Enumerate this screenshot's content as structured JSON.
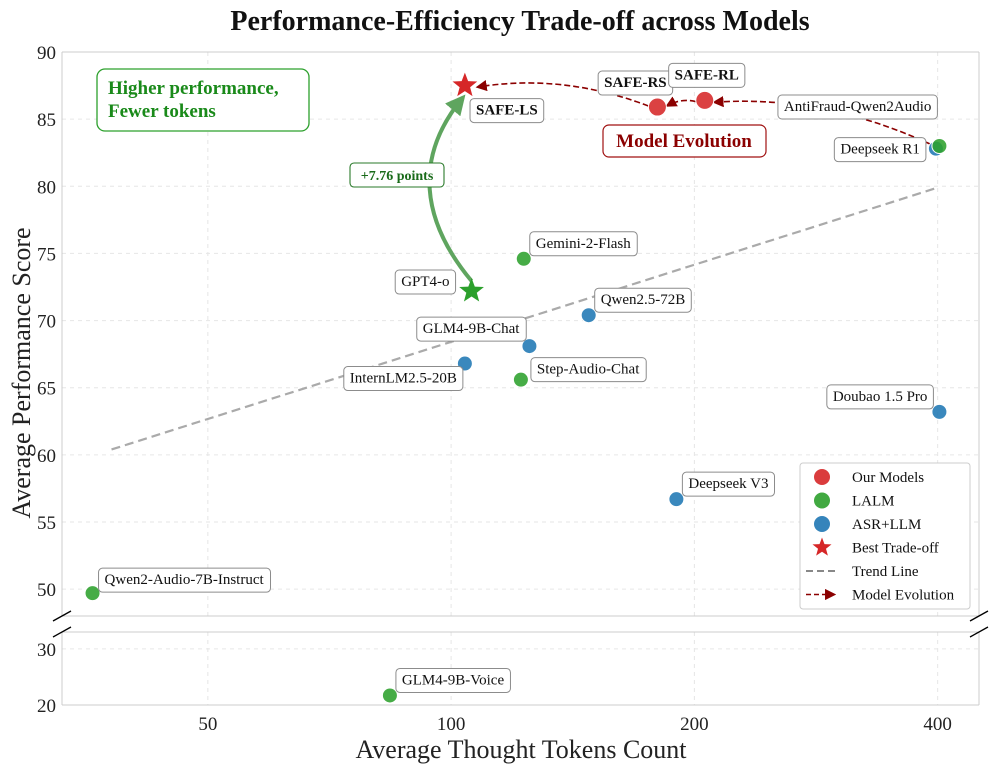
{
  "chart_data": {
    "type": "scatter",
    "title": "Performance-Efficiency Trade-off across Models",
    "xlabel": "Average Thought Tokens Count",
    "ylabel": "Average Performance Score",
    "x_scale": "log",
    "x_ticks": [
      50,
      100,
      200,
      400
    ],
    "x_tick_labels": [
      "50",
      "100",
      "200",
      "400"
    ],
    "y_upper_ticks": [
      50,
      55,
      60,
      65,
      70,
      75,
      80,
      85,
      90
    ],
    "y_upper_tick_labels": [
      "50",
      "55",
      "60",
      "65",
      "70",
      "75",
      "80",
      "85",
      "90"
    ],
    "y_lower_ticks": [
      20,
      30
    ],
    "y_lower_tick_labels": [
      "20",
      "30"
    ],
    "xlim": [
      33,
      450
    ],
    "ylim_upper": [
      48,
      90
    ],
    "ylim_lower": [
      20,
      33
    ],
    "grid": true,
    "colors": {
      "our_models": "#d62728",
      "lalm": "#2ca02c",
      "asr_llm": "#1f77b4",
      "best_tradeoff": "#d62728",
      "trend": "#aaaaaa",
      "evolution": "#8b0000",
      "annotation_green": "#1a7f1a"
    },
    "points": [
      {
        "name": "Qwen2-Audio-7B-Instruct",
        "x": 36,
        "y": 49.7,
        "group": "LALM"
      },
      {
        "name": "GLM4-9B-Voice",
        "x": 84,
        "y": 21.7,
        "group": "LALM"
      },
      {
        "name": "InternLM2.5-20B",
        "x": 104,
        "y": 66.8,
        "group": "ASR+LLM"
      },
      {
        "name": "GLM4-9B-Chat",
        "x": 125,
        "y": 68.1,
        "group": "ASR+LLM"
      },
      {
        "name": "Step-Audio-Chat",
        "x": 122,
        "y": 65.6,
        "group": "LALM"
      },
      {
        "name": "Gemini-2-Flash",
        "x": 123,
        "y": 74.6,
        "group": "LALM"
      },
      {
        "name": "Qwen2.5-72B",
        "x": 148,
        "y": 70.4,
        "group": "ASR+LLM"
      },
      {
        "name": "Deepseek V3",
        "x": 190,
        "y": 56.7,
        "group": "ASR+LLM"
      },
      {
        "name": "Doubao 1.5 Pro",
        "x": 402,
        "y": 63.2,
        "group": "ASR+LLM"
      },
      {
        "name": "Deepseek R1",
        "x": 398,
        "y": 82.8,
        "group": "ASR+LLM"
      },
      {
        "name": "AntiFraud-Qwen2Audio",
        "x": 402,
        "y": 83.0,
        "group": "LALM"
      },
      {
        "name": "GPT4-o",
        "x": 106,
        "y": 72.2,
        "group": "LALM",
        "marker": "star"
      },
      {
        "name": "SAFE-RS",
        "x": 180,
        "y": 85.9,
        "group": "Our Models"
      },
      {
        "name": "SAFE-RL",
        "x": 206,
        "y": 86.4,
        "group": "Our Models"
      },
      {
        "name": "SAFE-LS",
        "x": 104,
        "y": 87.5,
        "group": "Our Models",
        "marker": "star"
      }
    ],
    "trend_line": {
      "x": [
        38,
        400
      ],
      "y": [
        60.4,
        79.9
      ]
    },
    "evolution_path": [
      "AntiFraud-Qwen2Audio",
      "SAFE-RL",
      "SAFE-RS",
      "SAFE-LS"
    ],
    "annotations": {
      "improvement": "+7.76 points",
      "evolution": "Model Evolution",
      "higher_line1": "Higher performance,",
      "higher_line2": "Fewer tokens"
    },
    "legend": {
      "placement": "lower-right",
      "entries": [
        {
          "label": "Our Models",
          "kind": "circle",
          "color": "#d62728"
        },
        {
          "label": "LALM",
          "kind": "circle",
          "color": "#2ca02c"
        },
        {
          "label": "ASR+LLM",
          "kind": "circle",
          "color": "#1f77b4"
        },
        {
          "label": "Best Trade-off",
          "kind": "star",
          "color": "#d62728"
        },
        {
          "label": "Trend Line",
          "kind": "dash",
          "color": "#888888"
        },
        {
          "label": "Model Evolution",
          "kind": "arrow",
          "color": "#8b0000"
        }
      ]
    }
  }
}
